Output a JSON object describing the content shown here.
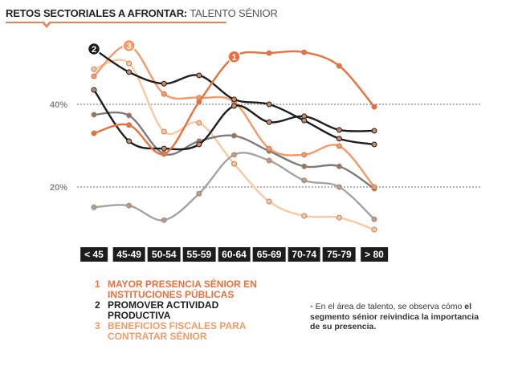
{
  "header": {
    "title_bold": "RETOS SECTORIALES A AFRONTAR:",
    "title_light": " TALENTO SÉNIOR"
  },
  "chart_data": {
    "type": "line",
    "categories": [
      "< 45",
      "45-49",
      "50-54",
      "55-59",
      "60-64",
      "65-69",
      "70-74",
      "75-79",
      "> 80"
    ],
    "yticks": [
      "40%",
      "20%"
    ],
    "ytick_values": [
      40,
      20
    ],
    "ylim": [
      8,
      56
    ],
    "grid": "dashed horizontal at ticks",
    "series": [
      {
        "label": "1",
        "color": "#ed6f3c",
        "values": [
          33.0,
          35.0,
          28.0,
          40.6,
          51.5,
          52.4,
          52.6,
          49.3,
          39.4
        ],
        "label_at": 4
      },
      {
        "label": "2",
        "color": "#1d1d1d",
        "values": [
          53.4,
          47.8,
          45.0,
          47.0,
          41.2,
          40.0,
          36.1,
          31.7,
          30.3
        ],
        "label_at": 0
      },
      {
        "label": "3",
        "color": "#f39a68",
        "values": [
          46.8,
          54.2,
          42.5,
          41.6,
          40.6,
          29.3,
          27.8,
          29.9,
          20.0
        ],
        "label_at": 1
      },
      {
        "color": "#1d1d1d",
        "values": [
          43.5,
          31.1,
          29.3,
          30.3,
          39.6,
          35.7,
          37.1,
          33.8,
          33.6
        ]
      },
      {
        "color": "#f9c9a0",
        "values": [
          48.5,
          49.9,
          33.4,
          35.5,
          25.6,
          16.5,
          13.0,
          12.6,
          9.7
        ]
      },
      {
        "color": "#7b7b7b",
        "values": [
          37.5,
          37.3,
          28.0,
          31.1,
          32.4,
          28.7,
          25.0,
          25.0,
          19.6
        ]
      },
      {
        "color": "#a3a3a3",
        "values": [
          15.1,
          15.5,
          12.0,
          18.4,
          27.8,
          26.4,
          21.6,
          20.0,
          12.2
        ]
      }
    ]
  },
  "legend": [
    {
      "num": "1",
      "text": "MAYOR PRESENCIA SÉNIOR EN INSTITUCIONES PÚBLICAS",
      "color": "#ed6f3c"
    },
    {
      "num": "2",
      "text": "PROMOVER ACTIVIDAD PRODUCTIVA",
      "color": "#1d1d1d"
    },
    {
      "num": "3",
      "text": "BENEFICIOS FISCALES PARA CONTRATAR SÉNIOR",
      "color": "#f39a68"
    }
  ],
  "note": {
    "bullet": "•",
    "plain": "En el área de talento, se observa cómo ",
    "bold": "el segmento sénior reivindica la importancia de su presencia."
  }
}
